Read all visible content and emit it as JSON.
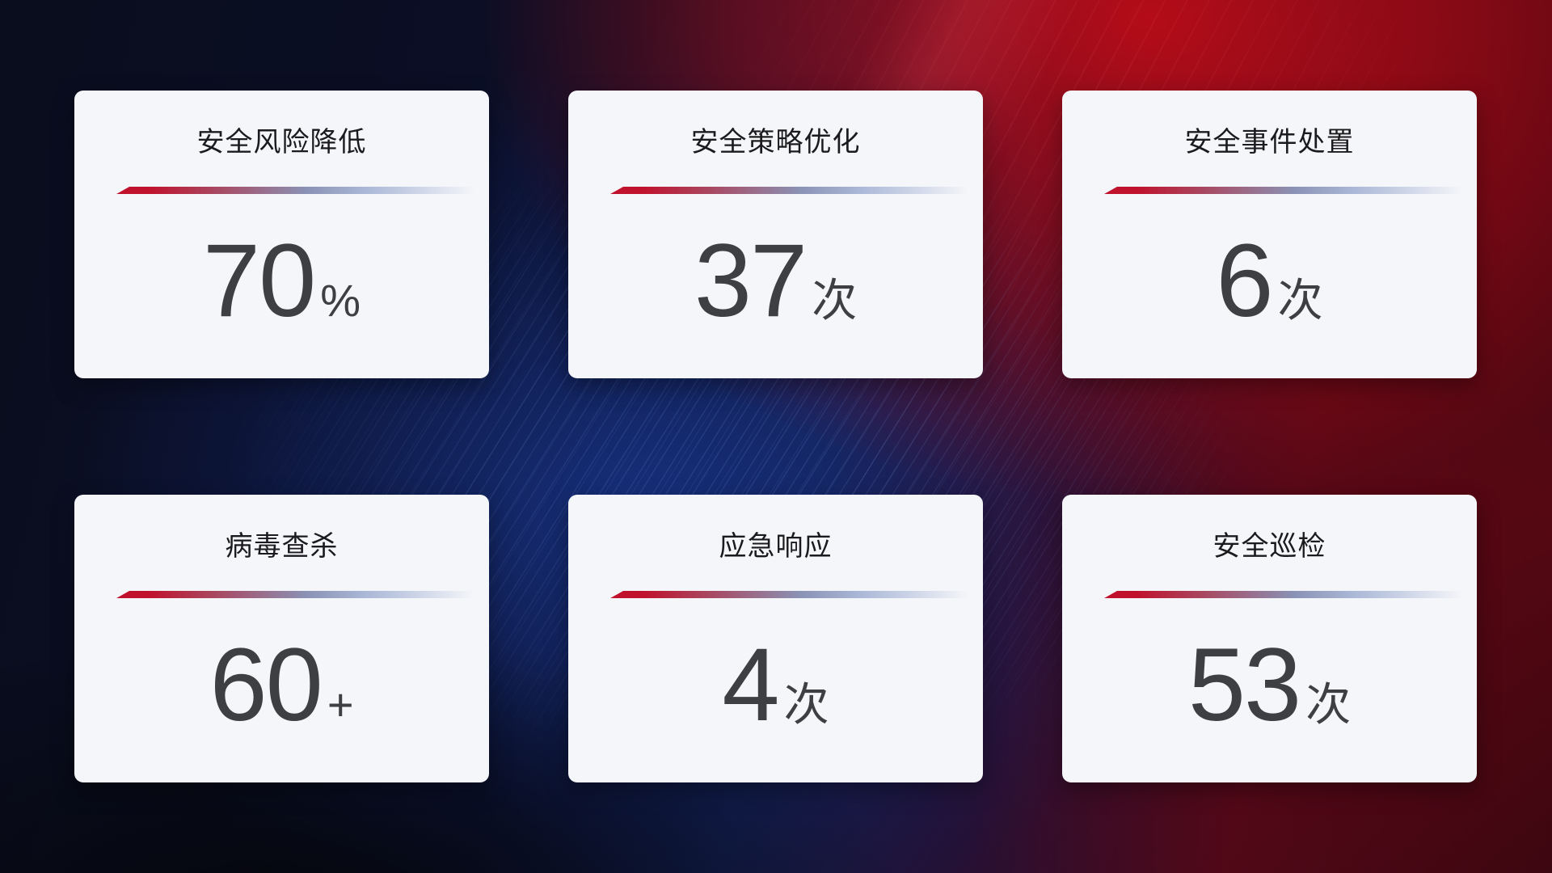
{
  "cards": [
    {
      "title": "安全风险降低",
      "value": "70",
      "unit": "%"
    },
    {
      "title": "安全策略优化",
      "value": "37",
      "unit": "次"
    },
    {
      "title": "安全事件处置",
      "value": "6",
      "unit": "次"
    },
    {
      "title": "病毒查杀",
      "value": "60",
      "unit": "+"
    },
    {
      "title": "应急响应",
      "value": "4",
      "unit": "次"
    },
    {
      "title": "安全巡检",
      "value": "53",
      "unit": "次"
    }
  ],
  "colors": {
    "card_background": "#f5f6f9",
    "title_text": "#1b1b1d",
    "value_text": "#3e3f42",
    "accent_red": "#c0122d",
    "accent_blue": "#aab7d6",
    "background_navy": "#0b0f28",
    "background_blue_glow": "#183488",
    "background_red_glow": "#bc0c16"
  }
}
